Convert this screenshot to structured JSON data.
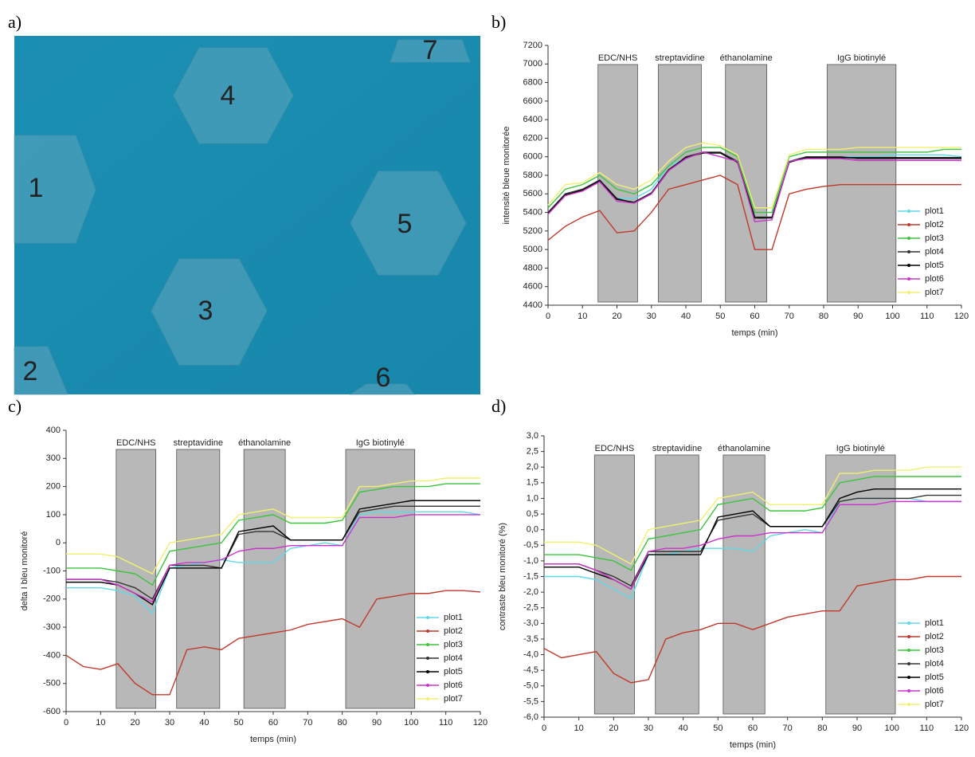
{
  "panel_labels": [
    "a)",
    "b)",
    "c)",
    "d)"
  ],
  "photo": {
    "labels": [
      "1",
      "2",
      "3",
      "4",
      "5",
      "6",
      "7"
    ]
  },
  "chart_data": [
    {
      "type": "line",
      "xlabel": "temps (min)",
      "ylabel": "intensité bleue monitorée",
      "xlim": [
        0,
        120
      ],
      "xticks": [
        0,
        10,
        20,
        30,
        40,
        50,
        60,
        70,
        80,
        90,
        100,
        110,
        120
      ],
      "ylim": [
        4400,
        7200
      ],
      "yticks": [
        4400,
        4600,
        4800,
        5000,
        5200,
        5400,
        5600,
        5800,
        6000,
        6200,
        6400,
        6600,
        6800,
        7000,
        7200
      ],
      "legend": "lower right",
      "regions": [
        {
          "label": "EDC/NHS",
          "x0": 14.5,
          "x1": 26
        },
        {
          "label": "streptavidine",
          "x0": 32,
          "x1": 44.5
        },
        {
          "label": "éthanolamine",
          "x0": 51.5,
          "x1": 63.5
        },
        {
          "label": "IgG biotinylé",
          "x0": 81,
          "x1": 101
        }
      ],
      "x": [
        0,
        5,
        10,
        15,
        20,
        25,
        30,
        35,
        40,
        45,
        50,
        55,
        60,
        65,
        70,
        75,
        80,
        85,
        90,
        95,
        100,
        105,
        110,
        115,
        120
      ],
      "series": [
        {
          "name": "plot1",
          "color": "#5fd8e8",
          "values": [
            5400,
            5600,
            5650,
            5750,
            5550,
            5550,
            5650,
            5900,
            5980,
            6050,
            6000,
            5950,
            5350,
            5350,
            5950,
            6000,
            6000,
            6000,
            6000,
            6000,
            6020,
            6020,
            6020,
            6020,
            6000
          ]
        },
        {
          "name": "plot2",
          "color": "#c0392b",
          "values": [
            5100,
            5250,
            5350,
            5420,
            5180,
            5200,
            5400,
            5650,
            5700,
            5750,
            5800,
            5700,
            5000,
            5000,
            5600,
            5650,
            5680,
            5700,
            5700,
            5700,
            5700,
            5700,
            5700,
            5700,
            5700
          ]
        },
        {
          "name": "plot3",
          "color": "#3cc43c",
          "values": [
            5450,
            5650,
            5700,
            5800,
            5650,
            5600,
            5700,
            5900,
            6050,
            6100,
            6100,
            6000,
            5400,
            5400,
            6000,
            6050,
            6050,
            6050,
            6050,
            6050,
            6050,
            6050,
            6050,
            6080,
            6080
          ]
        },
        {
          "name": "plot4",
          "color": "#333333",
          "values": [
            5400,
            5600,
            5650,
            5750,
            5550,
            5500,
            5600,
            5850,
            6000,
            6050,
            6050,
            5950,
            5350,
            5350,
            5950,
            6000,
            6000,
            6000,
            5980,
            5980,
            5980,
            5980,
            5980,
            5980,
            5980
          ]
        },
        {
          "name": "plot5",
          "color": "#000000",
          "values": [
            5390,
            5590,
            5640,
            5740,
            5540,
            5510,
            5610,
            5860,
            5990,
            6040,
            6040,
            5940,
            5340,
            5340,
            5940,
            5990,
            5990,
            5990,
            5990,
            5990,
            5990,
            5990,
            5990,
            5990,
            5990
          ]
        },
        {
          "name": "plot6",
          "color": "#cc33cc",
          "values": [
            5380,
            5580,
            5630,
            5730,
            5520,
            5500,
            5600,
            5850,
            5980,
            6050,
            6000,
            5950,
            5300,
            5320,
            5950,
            5980,
            5980,
            5980,
            5960,
            5960,
            5960,
            5960,
            5960,
            5960,
            5960
          ]
        },
        {
          "name": "plot7",
          "color": "#f0f070",
          "values": [
            5480,
            5700,
            5720,
            5830,
            5700,
            5650,
            5750,
            5950,
            6100,
            6150,
            6120,
            6020,
            5450,
            5450,
            6020,
            6080,
            6080,
            6080,
            6100,
            6100,
            6100,
            6100,
            6100,
            6100,
            6100
          ]
        }
      ]
    },
    {
      "type": "line",
      "xlabel": "temps (min)",
      "ylabel": "delta I bleu monitoré",
      "xlim": [
        0,
        120
      ],
      "xticks": [
        0,
        10,
        20,
        30,
        40,
        50,
        60,
        70,
        80,
        90,
        100,
        110,
        120
      ],
      "ylim": [
        -600,
        400
      ],
      "yticks": [
        -600,
        -500,
        -400,
        -300,
        -200,
        -100,
        0,
        100,
        200,
        300,
        400
      ],
      "legend": "lower right",
      "regions": [
        {
          "label": "EDC/NHS",
          "x0": 14.5,
          "x1": 26
        },
        {
          "label": "streptavidine",
          "x0": 32,
          "x1": 44.5
        },
        {
          "label": "éthanolamine",
          "x0": 51.5,
          "x1": 63.5
        },
        {
          "label": "IgG biotinylé",
          "x0": 81,
          "x1": 101
        }
      ],
      "x": [
        0,
        5,
        10,
        15,
        20,
        25,
        30,
        35,
        40,
        45,
        50,
        55,
        60,
        65,
        70,
        75,
        80,
        85,
        90,
        95,
        100,
        105,
        110,
        115,
        120
      ],
      "series": [
        {
          "name": "plot1",
          "color": "#5fd8e8",
          "values": [
            -160,
            -160,
            -160,
            -170,
            -190,
            -250,
            -90,
            -80,
            -70,
            -60,
            -70,
            -70,
            -70,
            -20,
            -10,
            0,
            -10,
            100,
            110,
            110,
            110,
            110,
            110,
            110,
            100
          ]
        },
        {
          "name": "plot2",
          "color": "#c0392b",
          "values": [
            -400,
            -440,
            -450,
            -430,
            -500,
            -540,
            -540,
            -380,
            -370,
            -380,
            -340,
            -330,
            -320,
            -310,
            -290,
            -280,
            -270,
            -300,
            -200,
            -190,
            -180,
            -180,
            -170,
            -170,
            -175
          ]
        },
        {
          "name": "plot3",
          "color": "#3cc43c",
          "values": [
            -90,
            -90,
            -90,
            -100,
            -110,
            -150,
            -30,
            -20,
            -10,
            0,
            80,
            90,
            100,
            70,
            70,
            70,
            80,
            180,
            190,
            200,
            200,
            200,
            210,
            210,
            210
          ]
        },
        {
          "name": "plot4",
          "color": "#333333",
          "values": [
            -130,
            -130,
            -130,
            -140,
            -160,
            -200,
            -80,
            -80,
            -80,
            -90,
            30,
            40,
            40,
            10,
            10,
            10,
            10,
            110,
            120,
            130,
            130,
            130,
            130,
            130,
            130
          ]
        },
        {
          "name": "plot5",
          "color": "#000000",
          "values": [
            -140,
            -140,
            -140,
            -150,
            -180,
            -220,
            -90,
            -90,
            -90,
            -90,
            40,
            50,
            60,
            10,
            10,
            10,
            10,
            120,
            130,
            140,
            150,
            150,
            150,
            150,
            150
          ]
        },
        {
          "name": "plot6",
          "color": "#cc33cc",
          "values": [
            -130,
            -130,
            -130,
            -150,
            -180,
            -210,
            -80,
            -70,
            -70,
            -60,
            -30,
            -20,
            -20,
            -10,
            -10,
            -10,
            -10,
            90,
            90,
            90,
            100,
            100,
            100,
            100,
            100
          ]
        },
        {
          "name": "plot7",
          "color": "#f0f070",
          "values": [
            -40,
            -40,
            -40,
            -50,
            -80,
            -110,
            0,
            10,
            20,
            30,
            100,
            110,
            120,
            90,
            90,
            90,
            90,
            200,
            200,
            210,
            220,
            220,
            230,
            230,
            230
          ]
        }
      ]
    },
    {
      "type": "line",
      "xlabel": "temps (min)",
      "ylabel": "contraste bleu monitoré (%)",
      "xlim": [
        0,
        120
      ],
      "xticks": [
        0,
        10,
        20,
        30,
        40,
        50,
        60,
        70,
        80,
        90,
        100,
        110,
        120
      ],
      "ylim": [
        -6,
        3
      ],
      "yticks": [
        {
          "value": -6,
          "label": "-6,0"
        },
        {
          "value": -5.5,
          "label": "-5,5"
        },
        {
          "value": -5,
          "label": "-5,0"
        },
        {
          "value": -4.5,
          "label": "-4,5"
        },
        {
          "value": -4,
          "label": "-4,0"
        },
        {
          "value": -3.5,
          "label": "-3,5"
        },
        {
          "value": -3,
          "label": "-3,0"
        },
        {
          "value": -2.5,
          "label": "-2,5"
        },
        {
          "value": -2,
          "label": "-2,0"
        },
        {
          "value": -1.5,
          "label": "-1,5"
        },
        {
          "value": -1,
          "label": "-1,0"
        },
        {
          "value": -0.5,
          "label": "-0,5"
        },
        {
          "value": 0,
          "label": "0,0"
        },
        {
          "value": 0.5,
          "label": "0,5"
        },
        {
          "value": 1,
          "label": "1,0"
        },
        {
          "value": 1.5,
          "label": "1,5"
        },
        {
          "value": 2,
          "label": "2,0"
        },
        {
          "value": 2.5,
          "label": "2,5"
        },
        {
          "value": 3,
          "label": "3,0"
        }
      ],
      "legend": "lower right",
      "regions": [
        {
          "label": "EDC/NHS",
          "x0": 14.5,
          "x1": 26
        },
        {
          "label": "streptavidine",
          "x0": 32,
          "x1": 44.5
        },
        {
          "label": "éthanolamine",
          "x0": 51.5,
          "x1": 63.5
        },
        {
          "label": "IgG biotinylé",
          "x0": 81,
          "x1": 101
        }
      ],
      "x": [
        0,
        5,
        10,
        15,
        20,
        25,
        30,
        35,
        40,
        45,
        50,
        55,
        60,
        65,
        70,
        75,
        80,
        85,
        90,
        95,
        100,
        105,
        110,
        115,
        120
      ],
      "series": [
        {
          "name": "plot1",
          "color": "#5fd8e8",
          "values": [
            -1.5,
            -1.5,
            -1.5,
            -1.6,
            -1.9,
            -2.2,
            -0.8,
            -0.8,
            -0.7,
            -0.6,
            -0.6,
            -0.6,
            -0.7,
            -0.2,
            -0.1,
            0,
            -0.1,
            0.9,
            1.0,
            1.0,
            1.0,
            1.0,
            0.9,
            0.9,
            0.9
          ]
        },
        {
          "name": "plot2",
          "color": "#c0392b",
          "values": [
            -3.8,
            -4.1,
            -4.0,
            -3.9,
            -4.6,
            -4.9,
            -4.8,
            -3.5,
            -3.3,
            -3.2,
            -3.0,
            -3.0,
            -3.2,
            -3.0,
            -2.8,
            -2.7,
            -2.6,
            -2.6,
            -1.8,
            -1.7,
            -1.6,
            -1.6,
            -1.5,
            -1.5,
            -1.5
          ]
        },
        {
          "name": "plot3",
          "color": "#3cc43c",
          "values": [
            -0.8,
            -0.8,
            -0.8,
            -0.9,
            -1.0,
            -1.3,
            -0.3,
            -0.2,
            -0.1,
            0,
            0.8,
            0.9,
            1.0,
            0.6,
            0.6,
            0.6,
            0.7,
            1.5,
            1.6,
            1.7,
            1.7,
            1.7,
            1.7,
            1.7,
            1.7
          ]
        },
        {
          "name": "plot4",
          "color": "#333333",
          "values": [
            -1.1,
            -1.1,
            -1.1,
            -1.3,
            -1.5,
            -1.8,
            -0.7,
            -0.7,
            -0.7,
            -0.7,
            0.3,
            0.4,
            0.5,
            0.1,
            0.1,
            0.1,
            0.1,
            0.9,
            1.0,
            1.0,
            1.0,
            1.0,
            1.1,
            1.1,
            1.1
          ]
        },
        {
          "name": "plot5",
          "color": "#000000",
          "values": [
            -1.2,
            -1.2,
            -1.2,
            -1.4,
            -1.6,
            -1.9,
            -0.8,
            -0.8,
            -0.8,
            -0.8,
            0.4,
            0.5,
            0.6,
            0.1,
            0.1,
            0.1,
            0.1,
            1.0,
            1.2,
            1.3,
            1.3,
            1.3,
            1.3,
            1.3,
            1.3
          ]
        },
        {
          "name": "plot6",
          "color": "#cc33cc",
          "values": [
            -1.1,
            -1.1,
            -1.1,
            -1.3,
            -1.6,
            -1.9,
            -0.7,
            -0.6,
            -0.6,
            -0.5,
            -0.3,
            -0.2,
            -0.2,
            -0.1,
            -0.1,
            -0.1,
            -0.1,
            0.8,
            0.8,
            0.8,
            0.9,
            0.9,
            0.9,
            0.9,
            0.9
          ]
        },
        {
          "name": "plot7",
          "color": "#f0f070",
          "values": [
            -0.4,
            -0.4,
            -0.4,
            -0.5,
            -0.8,
            -1.1,
            0,
            0.1,
            0.2,
            0.3,
            1.0,
            1.1,
            1.2,
            0.8,
            0.8,
            0.8,
            0.8,
            1.8,
            1.8,
            1.9,
            1.9,
            1.9,
            2.0,
            2.0,
            2.0
          ]
        }
      ]
    }
  ]
}
